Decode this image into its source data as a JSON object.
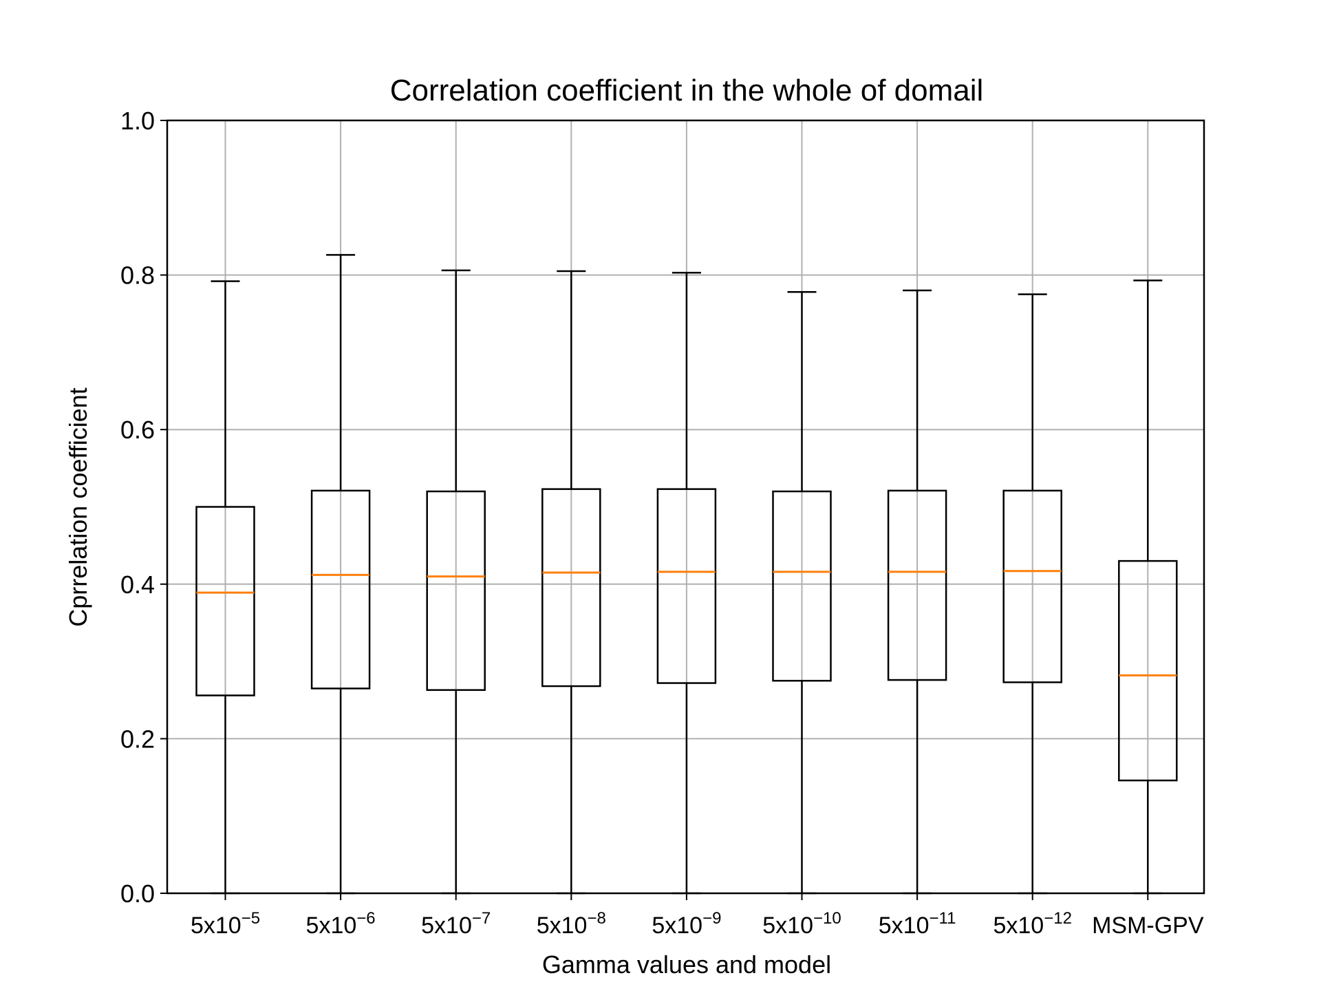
{
  "chart_data": {
    "type": "boxplot",
    "title": "Correlation coefficient in the whole of domail",
    "xlabel": "Gamma values and model",
    "ylabel": "Cprrelation coefficient",
    "ylim": [
      0.0,
      1.0
    ],
    "yticks": [
      0.0,
      0.2,
      0.4,
      0.6,
      0.8,
      1.0
    ],
    "ytick_labels": [
      "0.0",
      "0.2",
      "0.4",
      "0.6",
      "0.8",
      "1.0"
    ],
    "grid": true,
    "colors": {
      "box": "#000000",
      "median": "#ff7f0e",
      "grid": "#b0b0b0"
    },
    "categories": [
      {
        "base": "5x10",
        "exp": "−5"
      },
      {
        "base": "5x10",
        "exp": "−6"
      },
      {
        "base": "5x10",
        "exp": "−7"
      },
      {
        "base": "5x10",
        "exp": "−8"
      },
      {
        "base": "5x10",
        "exp": "−9"
      },
      {
        "base": "5x10",
        "exp": "−10"
      },
      {
        "base": "5x10",
        "exp": "−11"
      },
      {
        "base": "5x10",
        "exp": "−12"
      },
      {
        "base": "MSM-GPV",
        "exp": ""
      }
    ],
    "boxes": [
      {
        "whislo": 0.0,
        "q1": 0.256,
        "med": 0.389,
        "q3": 0.5,
        "whishi": 0.792
      },
      {
        "whislo": 0.0,
        "q1": 0.265,
        "med": 0.412,
        "q3": 0.521,
        "whishi": 0.826
      },
      {
        "whislo": 0.0,
        "q1": 0.263,
        "med": 0.41,
        "q3": 0.52,
        "whishi": 0.806
      },
      {
        "whislo": 0.0,
        "q1": 0.268,
        "med": 0.415,
        "q3": 0.523,
        "whishi": 0.805
      },
      {
        "whislo": 0.0,
        "q1": 0.272,
        "med": 0.416,
        "q3": 0.523,
        "whishi": 0.803
      },
      {
        "whislo": 0.0,
        "q1": 0.275,
        "med": 0.416,
        "q3": 0.52,
        "whishi": 0.778
      },
      {
        "whislo": 0.0,
        "q1": 0.276,
        "med": 0.416,
        "q3": 0.521,
        "whishi": 0.78
      },
      {
        "whislo": 0.0,
        "q1": 0.273,
        "med": 0.417,
        "q3": 0.521,
        "whishi": 0.775
      },
      {
        "whislo": 0.0,
        "q1": 0.146,
        "med": 0.282,
        "q3": 0.43,
        "whishi": 0.793
      }
    ]
  }
}
